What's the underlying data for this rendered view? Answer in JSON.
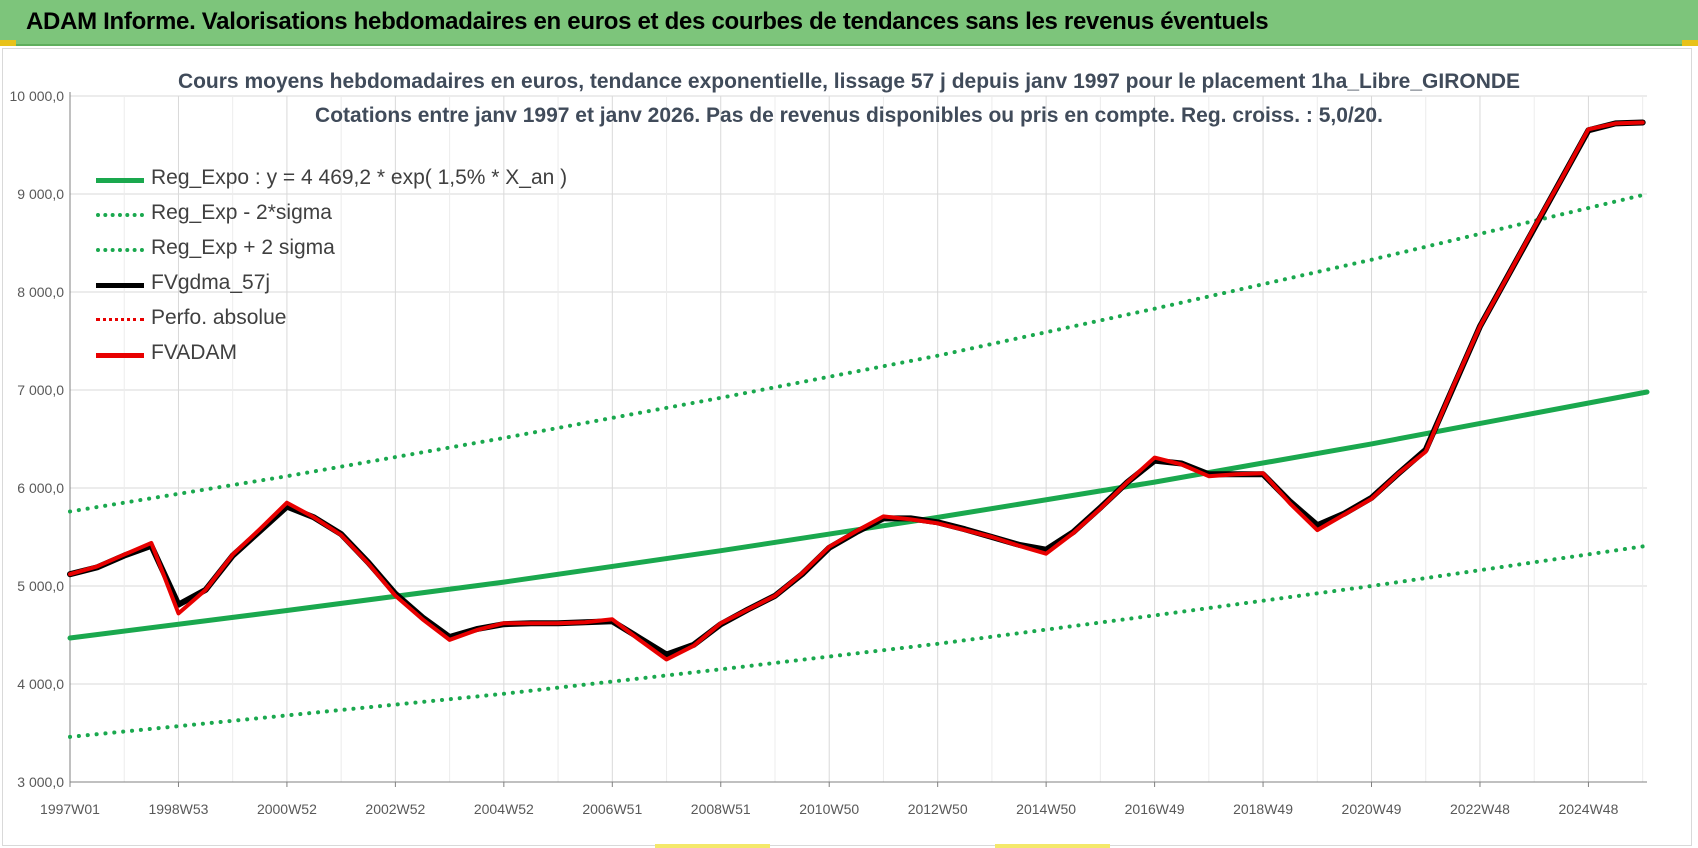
{
  "banner": {
    "title": "ADAM Informe. Valorisations hebdomadaires en euros et des courbes de tendances sans les revenus éventuels"
  },
  "colors": {
    "banner": "#7dc57b",
    "green": "#1aa84e",
    "red": "#e80000",
    "black": "#000000",
    "grid": "#d9d9d9",
    "title": "#404b5a"
  },
  "chart_data": {
    "type": "line",
    "title_line1": "Cours moyens hebdomadaires en euros, tendance exponentielle, lissage 57 j depuis janv 1997 pour le placement 1ha_Libre_GIRONDE",
    "title_line2": "Cotations entre janv 1997 et janv 2026. Pas de revenus disponibles ou pris  en compte. Reg. croiss. : 5,0/20.",
    "xlabel": "",
    "ylabel": "",
    "xlim": [
      1997.0,
      2026.08
    ],
    "ylim": [
      3000,
      10000
    ],
    "y_ticks": [
      3000,
      4000,
      5000,
      6000,
      7000,
      8000,
      9000,
      10000
    ],
    "y_tick_labels": [
      "3 000,0",
      "4 000,0",
      "5 000,0",
      "6 000,0",
      "7 000,0",
      "8 000,0",
      "9 000,0",
      "10 000,0"
    ],
    "x_ticks": [
      1997.0,
      1999.0,
      2001.0,
      2003.0,
      2005.0,
      2007.0,
      2009.0,
      2011.0,
      2013.0,
      2015.0,
      2017.0,
      2019.0,
      2021.0,
      2023.0,
      2025.0
    ],
    "x_tick_labels": [
      "1997W01",
      "1998W53",
      "2000W52",
      "2002W52",
      "2004W52",
      "2006W51",
      "2008W51",
      "2010W50",
      "2012W50",
      "2014W50",
      "2016W49",
      "2018W49",
      "2020W49",
      "2022W48",
      "2024W48"
    ],
    "legend": [
      {
        "name": "Reg_Expo : y = 4 469,2 * exp( 1,5% *  X_an )",
        "color": "#1aa84e",
        "style": "solid"
      },
      {
        "name": "Reg_Exp - 2*sigma",
        "color": "#1aa84e",
        "style": "dotted"
      },
      {
        "name": "Reg_Exp + 2 sigma",
        "color": "#1aa84e",
        "style": "dotted"
      },
      {
        "name": "FVgdma_57j",
        "color": "#000000",
        "style": "solid"
      },
      {
        "name": "Perfo. absolue",
        "color": "#e80000",
        "style": "dotted"
      },
      {
        "name": "FVADAM",
        "color": "#e80000",
        "style": "solid"
      }
    ],
    "series": [
      {
        "name": "Reg_Expo : y = 4 469,2 * exp( 1,5% *  X_an )",
        "style": "solid",
        "color": "#1aa84e",
        "width": 5,
        "x": [
          1997.0,
          2001.0,
          2005.0,
          2009.0,
          2013.0,
          2017.0,
          2021.0,
          2026.08
        ],
        "y": [
          4469,
          4750,
          5040,
          5360,
          5700,
          6060,
          6450,
          6980
        ]
      },
      {
        "name": "Reg_Exp - 2*sigma",
        "style": "dotted",
        "color": "#1aa84e",
        "width": 4,
        "x": [
          1997.0,
          2001.0,
          2005.0,
          2009.0,
          2013.0,
          2017.0,
          2021.0,
          2026.08
        ],
        "y": [
          3460,
          3680,
          3900,
          4150,
          4410,
          4700,
          5000,
          5410
        ]
      },
      {
        "name": "Reg_Exp + 2 sigma",
        "style": "dotted",
        "color": "#1aa84e",
        "width": 4,
        "x": [
          1997.0,
          2001.0,
          2005.0,
          2009.0,
          2013.0,
          2017.0,
          2021.0,
          2026.08
        ],
        "y": [
          5760,
          6120,
          6510,
          6920,
          7350,
          7830,
          8330,
          9000
        ]
      },
      {
        "name": "FVgdma_57j",
        "style": "solid",
        "color": "#000000",
        "width": 6,
        "x": [
          1997.0,
          1997.5,
          1998.0,
          1998.5,
          1999.0,
          1999.5,
          2000.0,
          2000.5,
          2001.0,
          2001.5,
          2002.0,
          2002.5,
          2003.0,
          2003.5,
          2004.0,
          2004.5,
          2005.0,
          2005.5,
          2006.0,
          2006.5,
          2007.0,
          2007.5,
          2008.0,
          2008.5,
          2009.0,
          2009.5,
          2010.0,
          2010.5,
          2011.0,
          2011.5,
          2012.0,
          2012.5,
          2013.0,
          2013.5,
          2014.0,
          2014.5,
          2015.0,
          2015.5,
          2016.0,
          2016.5,
          2017.0,
          2017.5,
          2018.0,
          2018.5,
          2019.0,
          2019.5,
          2020.0,
          2020.5,
          2021.0,
          2021.5,
          2022.0,
          2022.5,
          2023.0,
          2023.5,
          2024.0,
          2024.5,
          2025.0,
          2025.5,
          2026.0
        ],
        "y": [
          5120,
          5190,
          5310,
          5410,
          4810,
          4960,
          5310,
          5560,
          5810,
          5700,
          5530,
          5240,
          4920,
          4680,
          4480,
          4560,
          4610,
          4620,
          4620,
          4630,
          4640,
          4470,
          4300,
          4400,
          4610,
          4760,
          4900,
          5120,
          5390,
          5550,
          5690,
          5690,
          5650,
          5580,
          5500,
          5420,
          5370,
          5550,
          5800,
          6060,
          6280,
          6250,
          6140,
          6140,
          6140,
          5860,
          5620,
          5740,
          5900,
          6150,
          6390,
          7020,
          7650,
          8150,
          8650,
          9150,
          9650,
          9720,
          9730
        ]
      },
      {
        "name": "Perfo. absolue",
        "style": "dotted",
        "color": "#e80000",
        "width": 3,
        "x": [
          1997.0,
          1997.5,
          1998.0,
          1998.5,
          1999.0,
          1999.5,
          2000.0,
          2000.5,
          2001.0,
          2001.5,
          2002.0,
          2002.5,
          2003.0,
          2003.5,
          2004.0,
          2004.5,
          2005.0,
          2005.5,
          2006.0,
          2006.5,
          2007.0,
          2007.5,
          2008.0,
          2008.5,
          2009.0,
          2009.5,
          2010.0,
          2010.5,
          2011.0,
          2011.5,
          2012.0,
          2012.5,
          2013.0,
          2013.5,
          2014.0,
          2014.5,
          2015.0,
          2015.5,
          2016.0,
          2016.5,
          2017.0,
          2017.5,
          2018.0,
          2018.5,
          2019.0,
          2019.5,
          2020.0,
          2020.5,
          2021.0,
          2021.5,
          2022.0,
          2022.5,
          2023.0,
          2023.5,
          2024.0,
          2024.5,
          2025.0,
          2025.5,
          2026.0
        ],
        "y": [
          5120,
          5200,
          5320,
          5440,
          4720,
          4960,
          5320,
          5580,
          5850,
          5700,
          5520,
          5230,
          4900,
          4660,
          4450,
          4550,
          4620,
          4620,
          4620,
          4630,
          4660,
          4450,
          4250,
          4390,
          4620,
          4760,
          4900,
          5130,
          5400,
          5560,
          5710,
          5680,
          5640,
          5570,
          5500,
          5410,
          5330,
          5540,
          5790,
          6060,
          6310,
          6240,
          6120,
          6140,
          6150,
          5840,
          5570,
          5730,
          5890,
          6150,
          6370,
          7030,
          7650,
          8150,
          8660,
          9150,
          9660,
          9720,
          9730
        ]
      },
      {
        "name": "FVADAM",
        "style": "solid",
        "color": "#e80000",
        "width": 4,
        "x": [
          1997.0,
          1997.5,
          1998.0,
          1998.5,
          1999.0,
          1999.5,
          2000.0,
          2000.5,
          2001.0,
          2001.5,
          2002.0,
          2002.5,
          2003.0,
          2003.5,
          2004.0,
          2004.5,
          2005.0,
          2005.5,
          2006.0,
          2006.5,
          2007.0,
          2007.5,
          2008.0,
          2008.5,
          2009.0,
          2009.5,
          2010.0,
          2010.5,
          2011.0,
          2011.5,
          2012.0,
          2012.5,
          2013.0,
          2013.5,
          2014.0,
          2014.5,
          2015.0,
          2015.5,
          2016.0,
          2016.5,
          2017.0,
          2017.5,
          2018.0,
          2018.5,
          2019.0,
          2019.5,
          2020.0,
          2020.5,
          2021.0,
          2021.5,
          2022.0,
          2022.5,
          2023.0,
          2023.5,
          2024.0,
          2024.5,
          2025.0,
          2025.5,
          2026.0
        ],
        "y": [
          5120,
          5200,
          5320,
          5440,
          4720,
          4960,
          5320,
          5580,
          5850,
          5700,
          5520,
          5230,
          4900,
          4660,
          4450,
          4550,
          4620,
          4620,
          4620,
          4630,
          4660,
          4450,
          4250,
          4390,
          4620,
          4760,
          4900,
          5130,
          5400,
          5560,
          5710,
          5680,
          5640,
          5570,
          5500,
          5410,
          5330,
          5540,
          5790,
          6060,
          6310,
          6240,
          6120,
          6140,
          6150,
          5840,
          5570,
          5730,
          5890,
          6150,
          6370,
          7030,
          7650,
          8150,
          8660,
          9150,
          9660,
          9720,
          9730
        ]
      }
    ]
  }
}
